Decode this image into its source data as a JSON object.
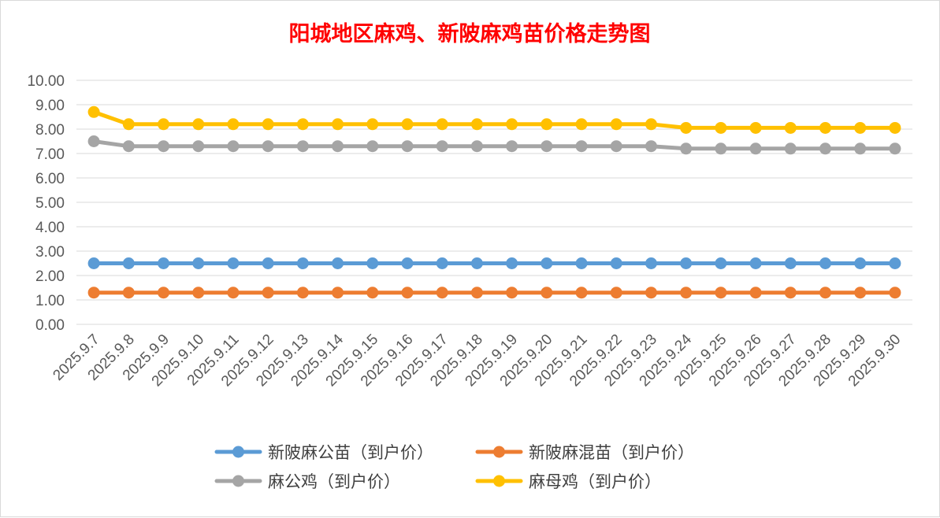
{
  "chart_data": {
    "type": "line",
    "title": "阳城地区麻鸡、新陂麻鸡苗价格走势图",
    "xlabel": "",
    "ylabel": "",
    "ylim": [
      0,
      10
    ],
    "yticks": [
      "0.00",
      "1.00",
      "2.00",
      "3.00",
      "4.00",
      "5.00",
      "6.00",
      "7.00",
      "8.00",
      "9.00",
      "10.00"
    ],
    "grid": true,
    "legend_position": "bottom",
    "categories": [
      "2025.9.7",
      "2025.9.8",
      "2025.9.9",
      "2025.9.10",
      "2025.9.11",
      "2025.9.12",
      "2025.9.13",
      "2025.9.14",
      "2025.9.15",
      "2025.9.16",
      "2025.9.17",
      "2025.9.18",
      "2025.9.19",
      "2025.9.20",
      "2025.9.21",
      "2025.9.22",
      "2025.9.23",
      "2025.9.24",
      "2025.9.25",
      "2025.9.26",
      "2025.9.27",
      "2025.9.28",
      "2025.9.29",
      "2025.9.30"
    ],
    "series": [
      {
        "name": "新陂麻公苗（到户价）",
        "color": "#5b9bd5",
        "values": [
          2.5,
          2.5,
          2.5,
          2.5,
          2.5,
          2.5,
          2.5,
          2.5,
          2.5,
          2.5,
          2.5,
          2.5,
          2.5,
          2.5,
          2.5,
          2.5,
          2.5,
          2.5,
          2.5,
          2.5,
          2.5,
          2.5,
          2.5,
          2.5
        ]
      },
      {
        "name": "新陂麻混苗（到户价）",
        "color": "#ed7d31",
        "values": [
          1.3,
          1.3,
          1.3,
          1.3,
          1.3,
          1.3,
          1.3,
          1.3,
          1.3,
          1.3,
          1.3,
          1.3,
          1.3,
          1.3,
          1.3,
          1.3,
          1.3,
          1.3,
          1.3,
          1.3,
          1.3,
          1.3,
          1.3,
          1.3
        ]
      },
      {
        "name": "麻公鸡（到户价）",
        "color": "#a5a5a5",
        "values": [
          7.5,
          7.3,
          7.3,
          7.3,
          7.3,
          7.3,
          7.3,
          7.3,
          7.3,
          7.3,
          7.3,
          7.3,
          7.3,
          7.3,
          7.3,
          7.3,
          7.3,
          7.2,
          7.2,
          7.2,
          7.2,
          7.2,
          7.2,
          7.2
        ]
      },
      {
        "name": "麻母鸡（到户价）",
        "color": "#ffc000",
        "values": [
          8.7,
          8.2,
          8.2,
          8.2,
          8.2,
          8.2,
          8.2,
          8.2,
          8.2,
          8.2,
          8.2,
          8.2,
          8.2,
          8.2,
          8.2,
          8.2,
          8.2,
          8.05,
          8.05,
          8.05,
          8.05,
          8.05,
          8.05,
          8.05
        ]
      }
    ]
  }
}
